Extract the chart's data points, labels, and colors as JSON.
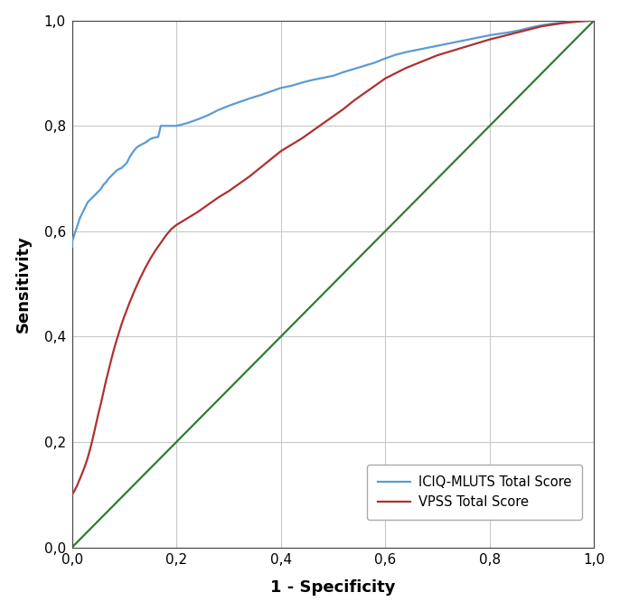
{
  "xlabel": "1 - Specificity",
  "ylabel": "Sensitivity",
  "xlim": [
    0,
    1
  ],
  "ylim": [
    0,
    1
  ],
  "xticks": [
    0.0,
    0.2,
    0.4,
    0.6,
    0.8,
    1.0
  ],
  "yticks": [
    0.0,
    0.2,
    0.4,
    0.6,
    0.8,
    1.0
  ],
  "xtick_labels": [
    "0,0",
    "0,2",
    "0,4",
    "0,6",
    "0,8",
    "1,0"
  ],
  "ytick_labels": [
    "0,0",
    "0,2",
    "0,4",
    "0,6",
    "0,8",
    "1,0"
  ],
  "diagonal_color": "#2e7d32",
  "line1_color": "#5b9bd5",
  "line2_color": "#b03030",
  "line1_label": "ICIQ-MLUTS Total Score",
  "line2_label": "VPSS Total Score",
  "background_color": "#ffffff",
  "grid_color": "#c8c8c8",
  "xlabel_fontsize": 13,
  "ylabel_fontsize": 13,
  "tick_fontsize": 11,
  "legend_fontsize": 10.5,
  "line_width": 1.6,
  "iciq_x": [
    0.0,
    0.0,
    0.005,
    0.01,
    0.015,
    0.02,
    0.025,
    0.03,
    0.035,
    0.04,
    0.045,
    0.05,
    0.055,
    0.06,
    0.065,
    0.07,
    0.075,
    0.08,
    0.085,
    0.09,
    0.095,
    0.1,
    0.105,
    0.11,
    0.115,
    0.12,
    0.125,
    0.13,
    0.14,
    0.15,
    0.155,
    0.16,
    0.165,
    0.17,
    0.175,
    0.18,
    0.185,
    0.19,
    0.195,
    0.2,
    0.22,
    0.24,
    0.26,
    0.28,
    0.3,
    0.32,
    0.34,
    0.36,
    0.38,
    0.4,
    0.42,
    0.44,
    0.46,
    0.48,
    0.5,
    0.52,
    0.54,
    0.56,
    0.58,
    0.6,
    0.62,
    0.64,
    0.66,
    0.68,
    0.7,
    0.72,
    0.74,
    0.76,
    0.78,
    0.8,
    0.82,
    0.84,
    0.86,
    0.88,
    0.9,
    0.92,
    0.94,
    0.96,
    0.98,
    1.0
  ],
  "iciq_y": [
    0.57,
    0.58,
    0.595,
    0.61,
    0.625,
    0.635,
    0.645,
    0.655,
    0.66,
    0.665,
    0.67,
    0.675,
    0.68,
    0.688,
    0.693,
    0.7,
    0.705,
    0.71,
    0.715,
    0.718,
    0.72,
    0.725,
    0.73,
    0.74,
    0.748,
    0.755,
    0.76,
    0.763,
    0.768,
    0.775,
    0.777,
    0.778,
    0.779,
    0.8,
    0.8,
    0.8,
    0.8,
    0.8,
    0.8,
    0.8,
    0.805,
    0.812,
    0.82,
    0.83,
    0.838,
    0.845,
    0.852,
    0.858,
    0.865,
    0.872,
    0.876,
    0.882,
    0.887,
    0.891,
    0.895,
    0.902,
    0.908,
    0.914,
    0.92,
    0.928,
    0.935,
    0.94,
    0.944,
    0.948,
    0.952,
    0.956,
    0.96,
    0.964,
    0.968,
    0.972,
    0.975,
    0.978,
    0.982,
    0.987,
    0.991,
    0.994,
    0.996,
    0.998,
    0.999,
    1.0
  ],
  "vpss_x": [
    0.0,
    0.005,
    0.01,
    0.015,
    0.02,
    0.025,
    0.03,
    0.035,
    0.04,
    0.045,
    0.05,
    0.055,
    0.06,
    0.065,
    0.07,
    0.075,
    0.08,
    0.085,
    0.09,
    0.095,
    0.1,
    0.11,
    0.12,
    0.13,
    0.14,
    0.15,
    0.16,
    0.17,
    0.18,
    0.185,
    0.19,
    0.195,
    0.2,
    0.21,
    0.22,
    0.24,
    0.26,
    0.28,
    0.3,
    0.32,
    0.34,
    0.36,
    0.38,
    0.4,
    0.42,
    0.44,
    0.46,
    0.48,
    0.5,
    0.52,
    0.54,
    0.56,
    0.58,
    0.6,
    0.62,
    0.64,
    0.66,
    0.68,
    0.7,
    0.72,
    0.74,
    0.76,
    0.78,
    0.8,
    0.82,
    0.84,
    0.86,
    0.88,
    0.9,
    0.92,
    0.94,
    0.96,
    0.98,
    1.0
  ],
  "vpss_y": [
    0.1,
    0.108,
    0.118,
    0.13,
    0.142,
    0.155,
    0.17,
    0.188,
    0.208,
    0.23,
    0.252,
    0.272,
    0.294,
    0.316,
    0.336,
    0.356,
    0.375,
    0.392,
    0.408,
    0.424,
    0.438,
    0.464,
    0.488,
    0.51,
    0.53,
    0.548,
    0.564,
    0.578,
    0.592,
    0.598,
    0.604,
    0.608,
    0.612,
    0.618,
    0.624,
    0.636,
    0.65,
    0.664,
    0.676,
    0.69,
    0.704,
    0.72,
    0.736,
    0.752,
    0.764,
    0.776,
    0.79,
    0.804,
    0.818,
    0.832,
    0.848,
    0.862,
    0.876,
    0.89,
    0.9,
    0.91,
    0.918,
    0.926,
    0.934,
    0.94,
    0.946,
    0.952,
    0.958,
    0.964,
    0.969,
    0.974,
    0.979,
    0.984,
    0.989,
    0.992,
    0.995,
    0.997,
    0.999,
    1.0
  ]
}
